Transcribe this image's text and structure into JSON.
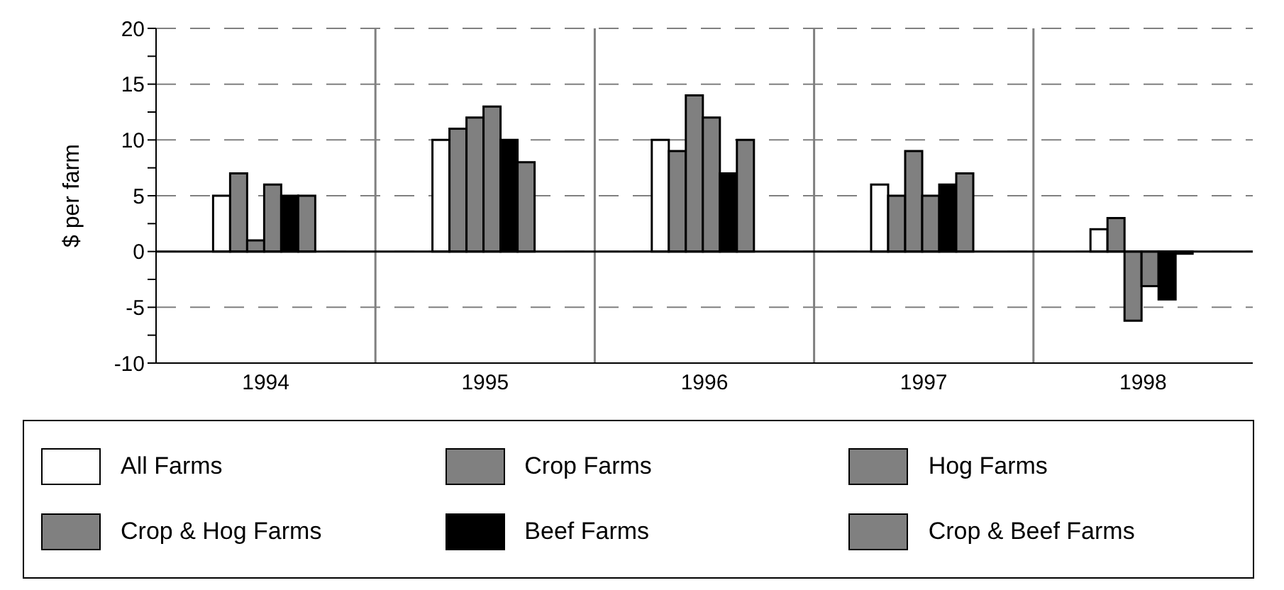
{
  "chart_data": {
    "type": "bar",
    "ylabel": "$ per farm",
    "categories": [
      "1994",
      "1995",
      "1996",
      "1997",
      "1998"
    ],
    "series": [
      {
        "name": "All Farms",
        "color": "#ffffff",
        "values": [
          5,
          10,
          10,
          6,
          2
        ]
      },
      {
        "name": "Crop Farms",
        "color": "#808080",
        "values": [
          7,
          11,
          9,
          5,
          3
        ]
      },
      {
        "name": "Hog Farms",
        "color": "#808080",
        "values": [
          1,
          12,
          14,
          9,
          -6.2
        ]
      },
      {
        "name": "Crop & Hog Farms",
        "color": "#808080",
        "values": [
          6,
          13,
          12,
          5,
          -3.1
        ]
      },
      {
        "name": "Beef Farms",
        "color": "#000000",
        "values": [
          5,
          10,
          7,
          6,
          -4.3
        ]
      },
      {
        "name": "Crop & Beef Farms",
        "color": "#808080",
        "values": [
          5,
          8,
          10,
          7,
          -0.2
        ]
      }
    ],
    "ylim": [
      -10,
      20
    ],
    "yticks": [
      -10,
      {
        "value": -7.5,
        "label": null
      },
      -5,
      {
        "value": -2.5,
        "label": null
      },
      0,
      {
        "value": 2.5,
        "label": null
      },
      5,
      {
        "value": 7.5,
        "label": null
      },
      10,
      {
        "value": 12.5,
        "label": null
      },
      15,
      {
        "value": 17.5,
        "label": null
      },
      20
    ],
    "ref_lines": [
      {
        "axis": "y",
        "value": 0,
        "color": "#000000"
      }
    ],
    "grid": true,
    "legend": "bottom"
  }
}
